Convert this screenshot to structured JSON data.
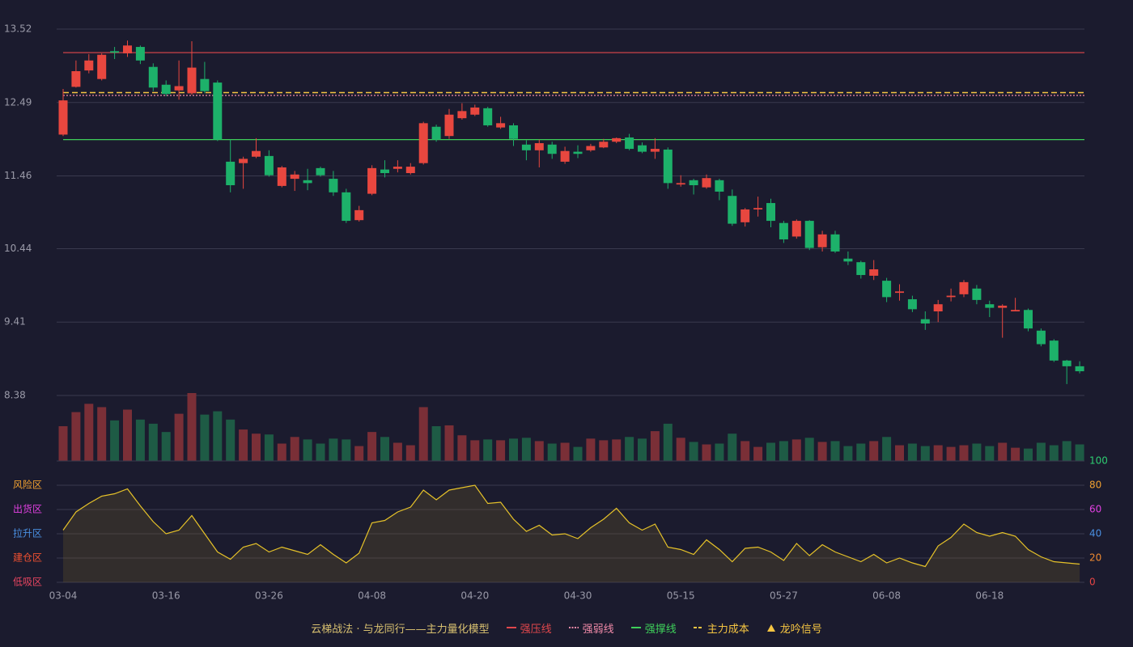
{
  "chart_data": [
    {
      "type": "candlestick",
      "legend_title": "云梯战法 · 与龙同行——主力量化模型",
      "categories": [
        "03-04",
        null,
        null,
        null,
        null,
        null,
        null,
        null,
        "03-16",
        null,
        null,
        null,
        null,
        null,
        null,
        null,
        "03-26",
        null,
        null,
        null,
        null,
        null,
        null,
        null,
        "04-08",
        null,
        null,
        null,
        null,
        null,
        null,
        null,
        "04-20",
        null,
        null,
        null,
        null,
        null,
        null,
        null,
        "04-30",
        null,
        null,
        null,
        null,
        null,
        null,
        null,
        "05-15",
        null,
        null,
        null,
        null,
        null,
        null,
        null,
        "05-27",
        null,
        null,
        null,
        null,
        null,
        null,
        null,
        "06-08",
        null,
        null,
        null,
        null,
        null,
        null,
        null,
        "06-18",
        null,
        null,
        null,
        null,
        null,
        null,
        null
      ],
      "open": [
        12.04,
        12.71,
        12.94,
        12.82,
        13.21,
        13.18,
        13.27,
        12.99,
        12.74,
        12.66,
        12.62,
        12.82,
        12.77,
        11.66,
        11.64,
        11.73,
        11.74,
        11.32,
        11.42,
        11.4,
        11.57,
        11.42,
        11.23,
        10.84,
        11.21,
        11.55,
        11.56,
        11.5,
        11.64,
        12.15,
        12.02,
        12.27,
        12.32,
        12.41,
        12.14,
        12.17,
        11.9,
        11.82,
        11.9,
        11.66,
        11.8,
        11.82,
        11.86,
        11.94,
        12.0,
        11.89,
        11.8,
        11.83,
        11.34,
        11.4,
        11.3,
        11.4,
        11.18,
        10.81,
        10.99,
        11.08,
        10.8,
        10.61,
        10.83,
        10.46,
        10.64,
        10.3,
        10.25,
        10.06,
        9.99,
        9.82,
        9.73,
        9.45,
        9.56,
        9.76,
        9.8,
        9.88,
        9.66,
        9.61,
        9.56,
        9.58,
        9.29,
        9.15,
        8.87,
        8.79
      ],
      "high": [
        12.68,
        13.08,
        13.17,
        13.18,
        13.27,
        13.36,
        13.29,
        13.04,
        12.8,
        13.08,
        13.35,
        13.06,
        12.8,
        11.97,
        11.73,
        11.99,
        11.82,
        11.6,
        11.53,
        11.56,
        11.59,
        11.53,
        11.28,
        11.04,
        11.61,
        11.68,
        11.68,
        11.64,
        12.22,
        12.18,
        12.4,
        12.48,
        12.46,
        12.43,
        12.29,
        12.2,
        11.96,
        11.97,
        11.94,
        11.87,
        11.89,
        11.91,
        11.98,
        12.0,
        12.05,
        11.93,
        11.99,
        11.86,
        11.47,
        11.42,
        11.48,
        11.42,
        11.27,
        11.01,
        11.17,
        11.14,
        10.83,
        10.85,
        10.84,
        10.69,
        10.69,
        10.4,
        10.27,
        10.28,
        10.03,
        9.94,
        9.78,
        9.56,
        9.72,
        9.88,
        10.0,
        9.93,
        9.71,
        9.66,
        9.75,
        9.6,
        9.32,
        9.17,
        8.88,
        8.86
      ],
      "low": [
        12.02,
        12.7,
        12.9,
        12.8,
        13.1,
        13.13,
        13.03,
        12.65,
        12.58,
        12.53,
        12.6,
        12.62,
        11.95,
        11.23,
        11.28,
        11.71,
        11.45,
        11.3,
        11.25,
        11.26,
        11.45,
        11.18,
        10.8,
        10.82,
        11.19,
        11.44,
        11.51,
        11.48,
        11.62,
        11.94,
        11.98,
        12.25,
        12.3,
        12.15,
        12.12,
        11.88,
        11.68,
        11.58,
        11.7,
        11.63,
        11.71,
        11.8,
        11.85,
        11.92,
        11.82,
        11.78,
        11.7,
        11.28,
        11.31,
        11.2,
        11.28,
        11.12,
        10.76,
        10.75,
        10.89,
        10.74,
        10.52,
        10.58,
        10.42,
        10.4,
        10.38,
        10.21,
        10.02,
        10.0,
        9.69,
        9.71,
        9.55,
        9.3,
        9.41,
        9.7,
        9.76,
        9.66,
        9.48,
        9.19,
        9.56,
        9.28,
        9.07,
        8.85,
        8.54,
        8.69
      ],
      "close": [
        12.52,
        12.93,
        13.08,
        13.16,
        13.19,
        13.29,
        13.08,
        12.7,
        12.61,
        12.72,
        12.98,
        12.65,
        11.97,
        11.33,
        11.7,
        11.81,
        11.47,
        11.58,
        11.48,
        11.36,
        11.47,
        11.23,
        10.83,
        10.98,
        11.57,
        11.5,
        11.59,
        11.59,
        12.2,
        11.97,
        12.32,
        12.37,
        12.42,
        12.17,
        12.2,
        11.98,
        11.82,
        11.92,
        11.77,
        11.81,
        11.77,
        11.88,
        11.94,
        11.99,
        11.84,
        11.8,
        11.84,
        11.36,
        11.36,
        11.33,
        11.43,
        11.24,
        10.79,
        10.99,
        11.01,
        10.83,
        10.57,
        10.83,
        10.45,
        10.64,
        10.4,
        10.26,
        10.07,
        10.15,
        9.76,
        9.84,
        9.59,
        9.39,
        9.66,
        9.78,
        9.97,
        9.72,
        9.61,
        9.64,
        9.58,
        9.32,
        9.1,
        8.87,
        8.79,
        8.72
      ],
      "up_color": "#e8473f",
      "down_color": "#1db16a",
      "ylim": [
        8.38,
        13.52
      ],
      "yticks": [
        8.38,
        9.41,
        10.44,
        11.46,
        12.49,
        13.52
      ],
      "grid": true,
      "levels": [
        {
          "name": "强压线",
          "value": 13.19,
          "color": "#e0474c",
          "style": "solid"
        },
        {
          "name": "强弱线",
          "value": 12.59,
          "color": "#f08aa8",
          "style": "dotted"
        },
        {
          "name": "强撑线",
          "value": 11.97,
          "color": "#3ecf5a",
          "style": "solid"
        },
        {
          "name": "主力成本",
          "value": 12.63,
          "color": "#f5c542",
          "style": "dashed"
        }
      ],
      "signal": {
        "name": "龙吟信号",
        "color": "#f5c542"
      }
    },
    {
      "type": "bar",
      "values": [
        42,
        59,
        69,
        65,
        49,
        62,
        50,
        45,
        35,
        57,
        82,
        56,
        60,
        50,
        38,
        33,
        32,
        21,
        29,
        26,
        21,
        27,
        26,
        18,
        35,
        29,
        22,
        19,
        65,
        42,
        43,
        31,
        25,
        26,
        25,
        27,
        28,
        24,
        21,
        22,
        17,
        27,
        25,
        26,
        29,
        27,
        36,
        45,
        28,
        23,
        20,
        21,
        33,
        24,
        17,
        22,
        24,
        26,
        28,
        23,
        24,
        18,
        21,
        24,
        29,
        19,
        21,
        18,
        19,
        17,
        19,
        21,
        18,
        22,
        16,
        15,
        22,
        19,
        24,
        20
      ],
      "up_color": "#7a2f37",
      "down_color": "#1e5b45"
    },
    {
      "type": "line",
      "values": [
        43,
        58,
        65,
        71,
        73,
        77,
        63,
        50,
        40,
        43,
        55,
        40,
        25,
        19,
        29,
        32,
        25,
        29,
        26,
        23,
        31,
        23,
        16,
        24,
        49,
        51,
        58,
        62,
        76,
        68,
        76,
        78,
        80,
        65,
        66,
        52,
        42,
        47,
        39,
        40,
        36,
        45,
        52,
        61,
        49,
        43,
        48,
        29,
        27,
        23,
        35,
        27,
        17,
        28,
        29,
        25,
        18,
        32,
        22,
        31,
        25,
        21,
        17,
        23,
        16,
        20,
        16,
        13,
        30,
        37,
        48,
        41,
        38,
        41,
        38,
        27,
        21,
        17,
        16,
        15
      ],
      "color": "#e6c229",
      "ylim": [
        0,
        100
      ],
      "yticks": [
        0,
        20,
        40,
        60,
        80,
        100
      ],
      "ytick_colors": [
        "#e84545",
        "#f08a30",
        "#4a90e2",
        "#e040e0",
        "#f0a030",
        "#2ecc71"
      ],
      "zones": [
        {
          "value": 80,
          "label": "风险区",
          "color": "#f0a030"
        },
        {
          "value": 60,
          "label": "出货区",
          "color": "#e040e0"
        },
        {
          "value": 40,
          "label": "拉升区",
          "color": "#4a90e2"
        },
        {
          "value": 20,
          "label": "建仓区",
          "color": "#f05030"
        },
        {
          "value": 0,
          "label": "低吸区",
          "color": "#e84560"
        }
      ]
    }
  ]
}
